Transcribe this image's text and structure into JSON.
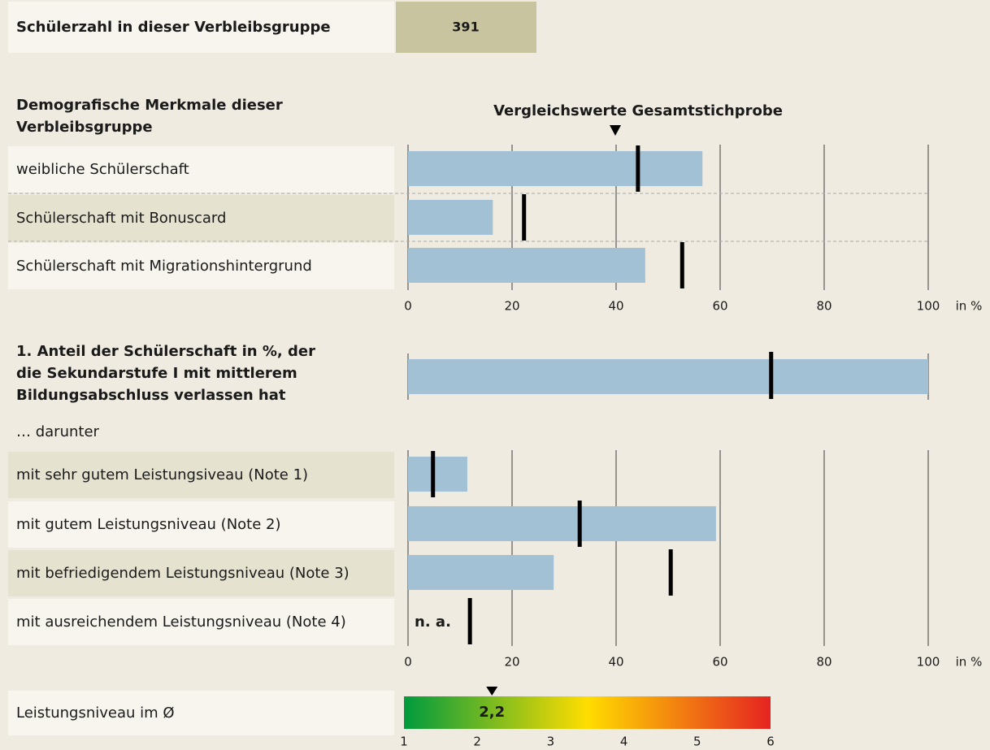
{
  "header": {
    "label": "Schülerzahl in dieser Verbleibsgruppe",
    "value": 391
  },
  "chart_data": [
    {
      "type": "bar",
      "orientation": "horizontal",
      "title": [
        "Demografische Merkmale dieser",
        "Verbleibsgruppe"
      ],
      "subtitle": "Vergleichswerte Gesamtstichprobe",
      "categories": [
        "weibliche Schülerschaft",
        "Schülerschaft mit Bonuscard",
        "Schülerschaft mit Migrationshintergrund"
      ],
      "values": [
        56.6,
        16.3,
        45.6
      ],
      "reference_values": [
        44.2,
        22.3,
        52.7
      ],
      "color": "#a3c1d5",
      "reference_color": "#000000",
      "xlim": [
        0,
        100
      ],
      "xticks": [
        0,
        20,
        40,
        60,
        80,
        100
      ],
      "x_unit_label": "in %",
      "grid": true
    },
    {
      "type": "bar",
      "orientation": "horizontal",
      "title": [
        "1. Anteil der Schülerschaft in %, der",
        "die Sekundarstufe I mit mittlerem",
        "Bildungsabschluss verlassen hat"
      ],
      "values": [
        100
      ],
      "reference_values": [
        69.8
      ],
      "color": "#a3c1d5",
      "reference_color": "#000000",
      "xlim": [
        0,
        100
      ]
    },
    {
      "type": "bar",
      "orientation": "horizontal",
      "subtitle": "… darunter",
      "categories": [
        "mit sehr gutem Leistungsiveau (Note 1)",
        "mit gutem Leistungsniveau (Note 2)",
        "mit befriedigendem Leistungsniveau (Note 3)",
        "mit ausreichendem Leistungsniveau (Note 4)"
      ],
      "values": [
        11.4,
        59.2,
        28,
        null
      ],
      "value_labels": [
        null,
        null,
        null,
        "n. a."
      ],
      "reference_values": [
        4.8,
        33,
        50.5,
        11.9
      ],
      "color": "#a3c1d5",
      "reference_color": "#000000",
      "xlim": [
        0,
        100
      ],
      "xticks": [
        0,
        20,
        40,
        60,
        80,
        100
      ],
      "x_unit_label": "in %",
      "grid": true
    },
    {
      "type": "gauge",
      "label": "Leistungsniveau im Ø",
      "value": 2.2,
      "value_label": "2,2",
      "xlim": [
        1,
        6
      ],
      "xticks": [
        1,
        2,
        3,
        4,
        5,
        6
      ],
      "colors": [
        "#009a3e",
        "#ffdd00",
        "#e52321"
      ]
    }
  ]
}
